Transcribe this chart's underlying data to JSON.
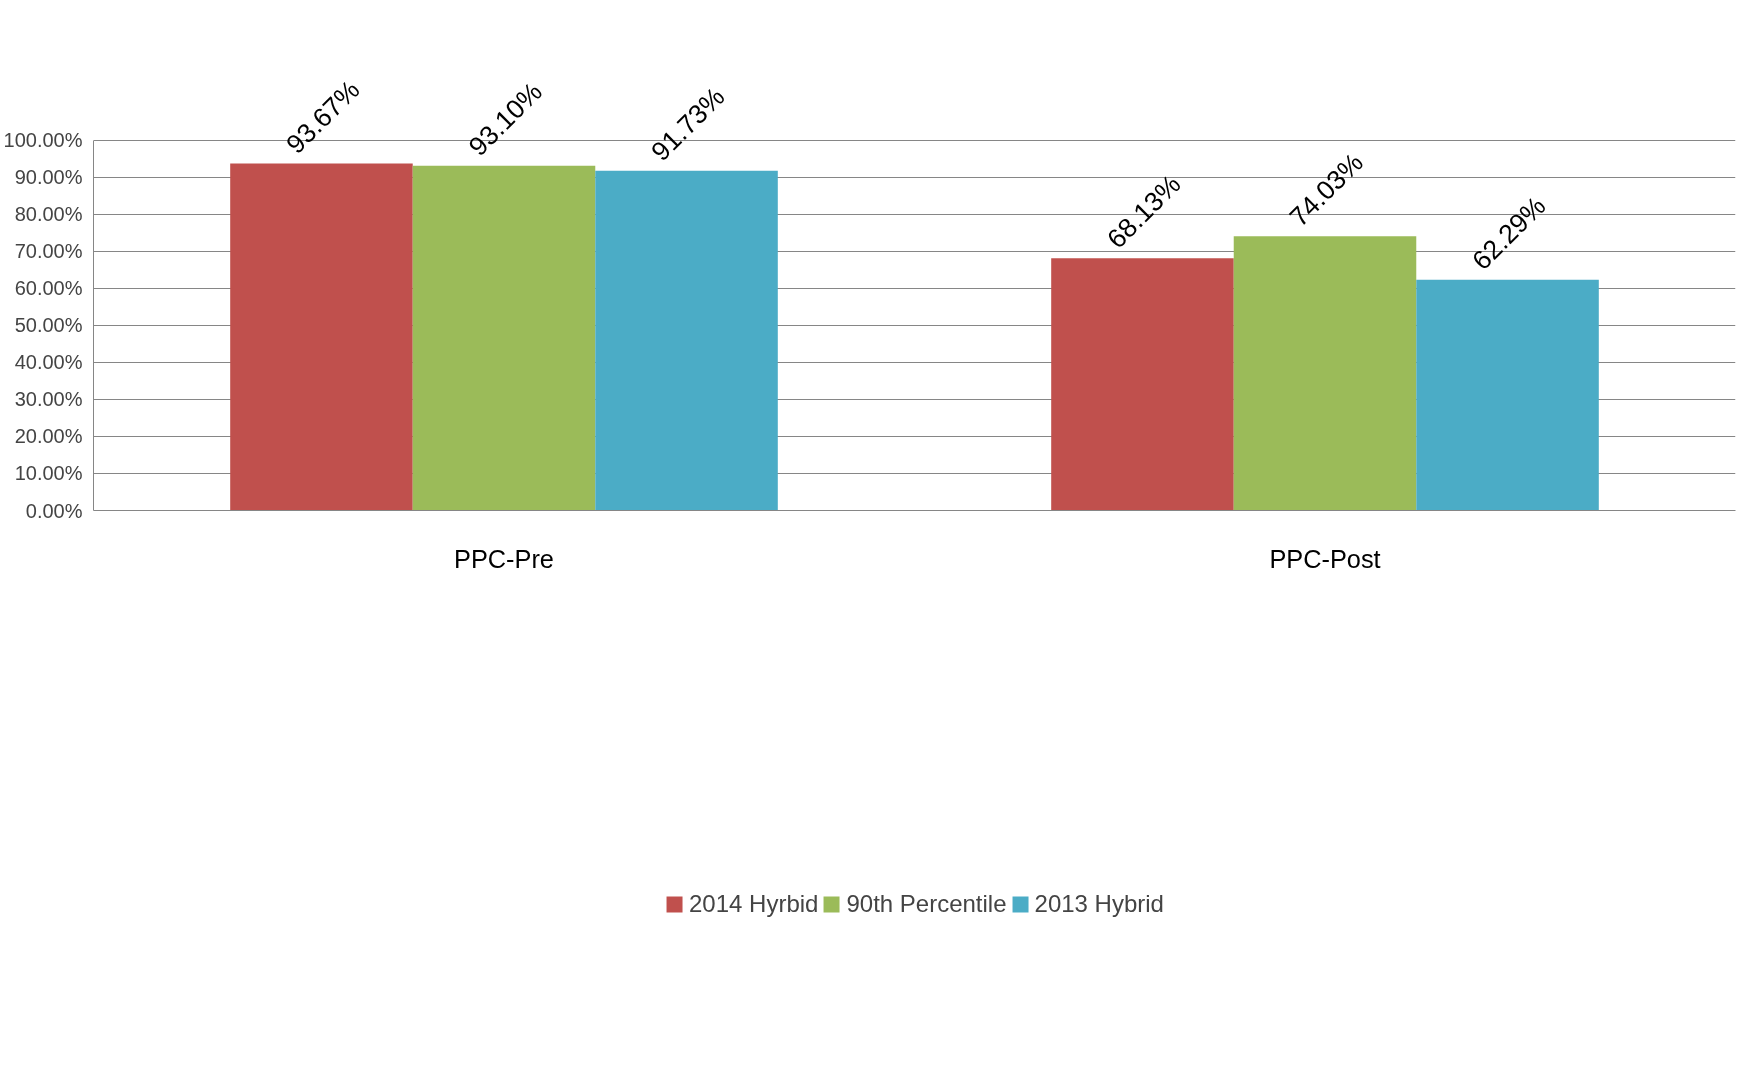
{
  "chart_data": {
    "type": "bar",
    "categories": [
      "PPC-Pre",
      "PPC-Post"
    ],
    "series": [
      {
        "name": "2014 Hyrbid",
        "color": "#c0504d",
        "values": [
          93.67,
          68.13
        ],
        "value_labels": [
          "93.67%",
          "68.13%"
        ]
      },
      {
        "name": "90th Percentile",
        "color": "#9bbb59",
        "values": [
          93.1,
          74.03
        ],
        "value_labels": [
          "93.10%",
          "74.03%"
        ]
      },
      {
        "name": "2013 Hybrid",
        "color": "#4bacc6",
        "values": [
          91.73,
          62.29
        ],
        "value_labels": [
          "91.73%",
          "62.29%"
        ]
      }
    ],
    "ylim": [
      0,
      100
    ],
    "yticks": [
      {
        "value": 0,
        "label": "0.00%"
      },
      {
        "value": 10,
        "label": "10.00%"
      },
      {
        "value": 20,
        "label": "20.00%"
      },
      {
        "value": 30,
        "label": "30.00%"
      },
      {
        "value": 40,
        "label": "40.00%"
      },
      {
        "value": 50,
        "label": "50.00%"
      },
      {
        "value": 60,
        "label": "60.00%"
      },
      {
        "value": 70,
        "label": "70.00%"
      },
      {
        "value": 80,
        "label": "80.00%"
      },
      {
        "value": 90,
        "label": "90.00%"
      },
      {
        "value": 100,
        "label": "100.00%"
      }
    ],
    "grid": "y",
    "legend": "bottom"
  }
}
